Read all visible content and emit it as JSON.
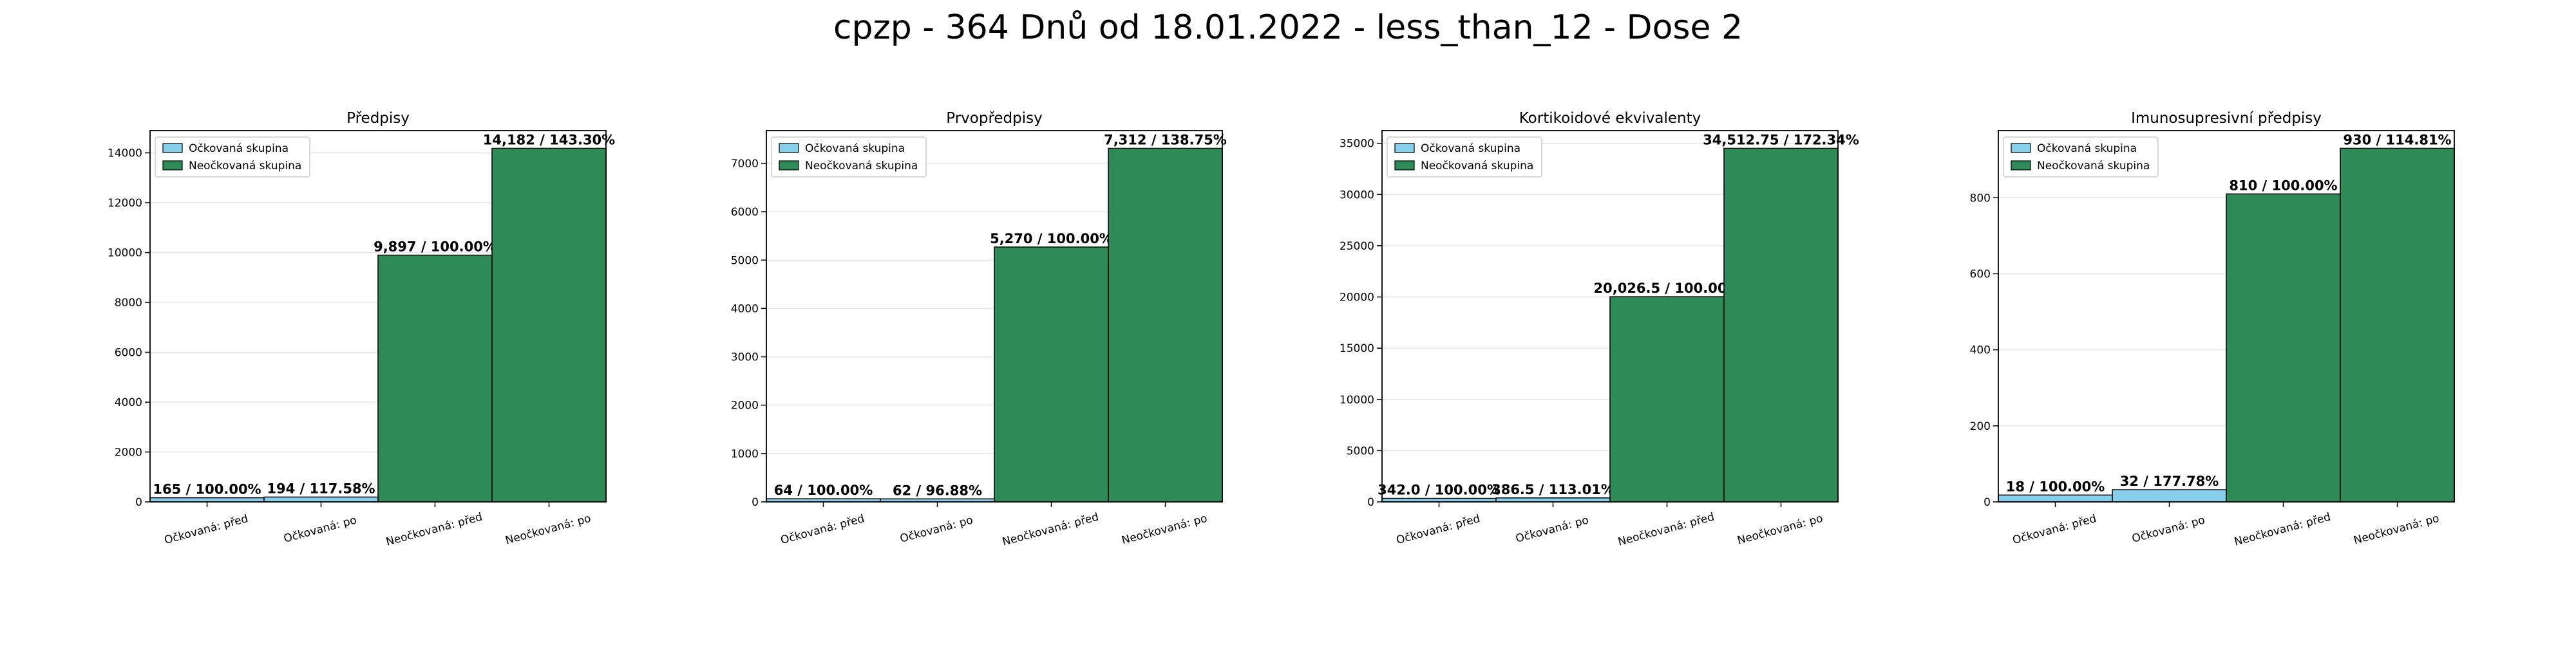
{
  "suptitle": "cpzp - 364 Dnů od 18.01.2022 - less_than_12 - Dose 2",
  "colors": {
    "vaccinated": "#87ceeb",
    "unvaccinated": "#2e8b57",
    "grid": "#e6e6e6",
    "axis": "#000000"
  },
  "legend": {
    "vaccinated": "Očkovaná skupina",
    "unvaccinated": "Neočkovaná skupina",
    "placement": "upper-left"
  },
  "chart_data": [
    {
      "type": "bar",
      "title": "Předpisy",
      "categories": [
        "Očkovaná: před",
        "Očkovaná: po",
        "Neočkovaná: před",
        "Neočkovaná: po"
      ],
      "values": [
        165,
        194,
        9897,
        14182
      ],
      "labels": [
        "165 / 100.00%",
        "194 / 117.58%",
        "9,897 / 100.00%",
        "14,182 / 143.30%"
      ],
      "groups": [
        "vaccinated",
        "vaccinated",
        "unvaccinated",
        "unvaccinated"
      ],
      "ylim": [
        0,
        14891
      ],
      "yticks": [
        0,
        2000,
        4000,
        6000,
        8000,
        10000,
        12000,
        14000
      ],
      "grid": "y"
    },
    {
      "type": "bar",
      "title": "Prvopředpisy",
      "categories": [
        "Očkovaná: před",
        "Očkovaná: po",
        "Neočkovaná: před",
        "Neočkovaná: po"
      ],
      "values": [
        64,
        62,
        5270,
        7312
      ],
      "labels": [
        "64 / 100.00%",
        "62 / 96.88%",
        "5,270 / 100.00%",
        "7,312 / 138.75%"
      ],
      "groups": [
        "vaccinated",
        "vaccinated",
        "unvaccinated",
        "unvaccinated"
      ],
      "ylim": [
        0,
        7678
      ],
      "yticks": [
        0,
        1000,
        2000,
        3000,
        4000,
        5000,
        6000,
        7000
      ],
      "grid": "y"
    },
    {
      "type": "bar",
      "title": "Kortikoidové ekvivalenty",
      "categories": [
        "Očkovaná: před",
        "Očkovaná: po",
        "Neočkovaná: před",
        "Neočkovaná: po"
      ],
      "values": [
        342.0,
        386.5,
        20026.5,
        34512.75
      ],
      "labels": [
        "342.0 / 100.00%",
        "386.5 / 113.01%",
        "20,026.5 / 100.00%",
        "34,512.75 / 172.34%"
      ],
      "groups": [
        "vaccinated",
        "vaccinated",
        "unvaccinated",
        "unvaccinated"
      ],
      "ylim": [
        0,
        36238
      ],
      "yticks": [
        0,
        5000,
        10000,
        15000,
        20000,
        25000,
        30000,
        35000
      ],
      "grid": "y"
    },
    {
      "type": "bar",
      "title": "Imunosupresivní předpisy",
      "categories": [
        "Očkovaná: před",
        "Očkovaná: po",
        "Neočkovaná: před",
        "Neočkovaná: po"
      ],
      "values": [
        18,
        32,
        810,
        930
      ],
      "labels": [
        "18 / 100.00%",
        "32 / 177.78%",
        "810 / 100.00%",
        "930 / 114.81%"
      ],
      "groups": [
        "vaccinated",
        "vaccinated",
        "unvaccinated",
        "unvaccinated"
      ],
      "ylim": [
        0,
        976.5
      ],
      "yticks": [
        0,
        200,
        400,
        600,
        800
      ],
      "grid": "y"
    }
  ]
}
